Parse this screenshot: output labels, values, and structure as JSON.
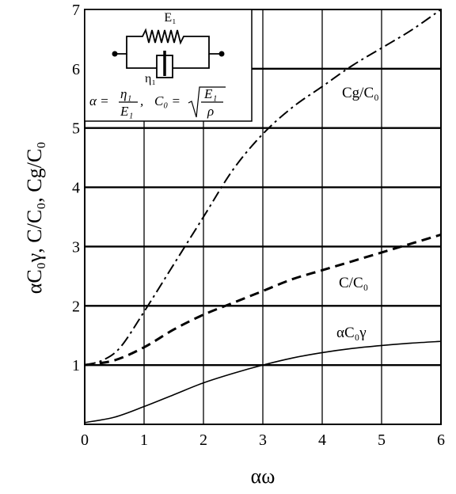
{
  "chart_data": {
    "type": "line",
    "title": "",
    "xlabel": "αω",
    "ylabel": "αC₀γ, C/C₀, Cg/C₀",
    "xlim": [
      0,
      6
    ],
    "ylim": [
      0,
      7
    ],
    "xticks": [
      "0",
      "1",
      "2",
      "3",
      "4",
      "5",
      "6"
    ],
    "yticks": [
      "1",
      "2",
      "3",
      "4",
      "5",
      "6",
      "7"
    ],
    "grid": true,
    "series": [
      {
        "name": "αC₀γ",
        "style": "solid",
        "x": [
          0,
          0.5,
          1,
          1.5,
          2,
          2.5,
          3,
          3.5,
          4,
          4.5,
          5,
          5.5,
          6
        ],
        "y": [
          0.03,
          0.12,
          0.3,
          0.5,
          0.7,
          0.86,
          1.0,
          1.12,
          1.21,
          1.28,
          1.33,
          1.37,
          1.4
        ]
      },
      {
        "name": "C/C₀",
        "style": "dashed",
        "x": [
          0,
          0.5,
          1,
          1.5,
          2,
          2.5,
          3,
          3.5,
          4,
          4.5,
          5,
          5.5,
          6
        ],
        "y": [
          1.0,
          1.08,
          1.3,
          1.6,
          1.85,
          2.05,
          2.25,
          2.45,
          2.6,
          2.75,
          2.9,
          3.05,
          3.2
        ]
      },
      {
        "name": "Cg/C₀",
        "style": "dash-dot",
        "x": [
          0,
          0.3,
          0.6,
          1,
          1.5,
          2,
          2.5,
          3,
          3.5,
          4,
          4.5,
          5,
          5.5,
          6
        ],
        "y": [
          1.0,
          1.08,
          1.3,
          1.9,
          2.7,
          3.5,
          4.3,
          4.9,
          5.35,
          5.7,
          6.05,
          6.35,
          6.65,
          7.0
        ]
      }
    ],
    "labels": {
      "gamma": "αC₀γ",
      "c": "C/C₀",
      "cg": "Cg/C₀"
    },
    "inset": {
      "spring_label": "E₁",
      "dashpot_label": "η₁",
      "alpha_lhs": "α =",
      "alpha_num": "η₁",
      "alpha_den": "E₁",
      "c0_lhs": "C₀ =",
      "c0_num": "E₁",
      "c0_den": "ρ"
    }
  }
}
